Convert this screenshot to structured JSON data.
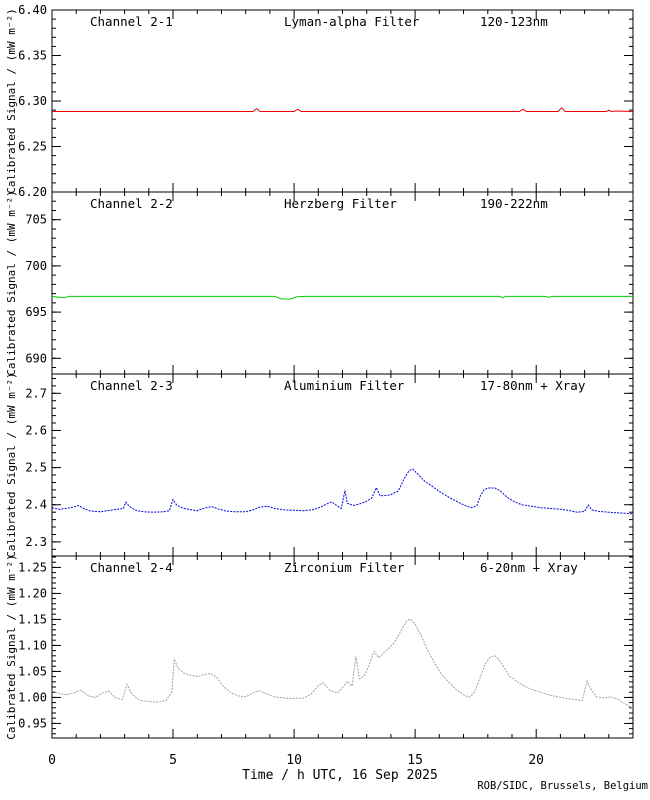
{
  "chart_data": {
    "type": "line",
    "title": "",
    "xlabel": "Time / h UTC, 16 Sep 2025",
    "credit": "ROB/SIDC, Brussels, Belgium",
    "x_range": [
      0,
      24
    ],
    "x_major_ticks": [
      0,
      5,
      10,
      15,
      20
    ],
    "x_tick_labels": [
      "0",
      "5",
      "10",
      "15",
      "20"
    ],
    "x_minor_step": 1,
    "grid": false,
    "legend": "none",
    "colors": {
      "frame": "#000000",
      "background": "#ffffff"
    },
    "panels": [
      {
        "id": "channel-2-1",
        "channel": "Channel 2-1",
        "filter": "Lyman-alpha Filter",
        "band": "120-123nm",
        "color": "#f00000",
        "ylabel": "Calibrated Signal / (mW m⁻²)",
        "y_range": [
          6.2,
          6.4
        ],
        "y_major_ticks": [
          6.2,
          6.25,
          6.3,
          6.35,
          6.4
        ],
        "y_tick_labels": [
          "6.20",
          "6.25",
          "6.30",
          "6.35",
          "6.40"
        ],
        "y_minor_step": 0.01,
        "line_style": "solid",
        "points": [
          [
            0,
            6.2885
          ],
          [
            2,
            6.2885
          ],
          [
            4,
            6.2885
          ],
          [
            6,
            6.2885
          ],
          [
            8.3,
            6.2885
          ],
          [
            8.45,
            6.2915
          ],
          [
            8.6,
            6.2885
          ],
          [
            10.0,
            6.2885
          ],
          [
            10.15,
            6.291
          ],
          [
            10.3,
            6.2885
          ],
          [
            12,
            6.2885
          ],
          [
            14,
            6.2885
          ],
          [
            16,
            6.2885
          ],
          [
            18,
            6.2885
          ],
          [
            19.3,
            6.2885
          ],
          [
            19.45,
            6.291
          ],
          [
            19.6,
            6.2885
          ],
          [
            20.9,
            6.2885
          ],
          [
            21.05,
            6.2925
          ],
          [
            21.2,
            6.2885
          ],
          [
            22.9,
            6.2885
          ],
          [
            23.0,
            6.29
          ],
          [
            23.1,
            6.2885
          ],
          [
            23.3,
            6.289
          ],
          [
            24,
            6.2885
          ]
        ]
      },
      {
        "id": "channel-2-2",
        "channel": "Channel 2-2",
        "filter": "Herzberg Filter",
        "band": "190-222nm",
        "color": "#00d000",
        "ylabel": "Calibrated Signal / (mW m⁻²)",
        "y_range": [
          688.3,
          708.0
        ],
        "y_major_ticks": [
          690,
          695,
          700,
          705
        ],
        "y_tick_labels": [
          "690",
          "695",
          "700",
          "705"
        ],
        "y_minor_step": 1,
        "line_style": "solid",
        "points": [
          [
            0,
            696.7
          ],
          [
            0.5,
            696.55
          ],
          [
            0.7,
            696.7
          ],
          [
            9.2,
            696.7
          ],
          [
            9.45,
            696.45
          ],
          [
            9.8,
            696.4
          ],
          [
            10.1,
            696.65
          ],
          [
            10.4,
            696.7
          ],
          [
            18.5,
            696.7
          ],
          [
            18.6,
            696.55
          ],
          [
            18.75,
            696.7
          ],
          [
            20.4,
            696.7
          ],
          [
            20.5,
            696.6
          ],
          [
            20.65,
            696.7
          ],
          [
            24,
            696.7
          ]
        ]
      },
      {
        "id": "channel-2-3",
        "channel": "Channel 2-3",
        "filter": "Aluminium Filter",
        "band": "17-80nm + Xray",
        "color": "#0000e0",
        "ylabel": "Calibrated Signal / (mW m⁻²)",
        "y_range": [
          2.262,
          2.752
        ],
        "y_major_ticks": [
          2.3,
          2.4,
          2.5,
          2.6,
          2.7
        ],
        "y_tick_labels": [
          "2.3",
          "2.4",
          "2.5",
          "2.6",
          "2.7"
        ],
        "y_minor_step": 0.02,
        "line_style": "dotted",
        "points": [
          [
            0,
            2.392
          ],
          [
            0.3,
            2.388
          ],
          [
            0.6,
            2.39
          ],
          [
            0.9,
            2.394
          ],
          [
            1.1,
            2.398
          ],
          [
            1.3,
            2.39
          ],
          [
            1.6,
            2.383
          ],
          [
            2.0,
            2.381
          ],
          [
            2.4,
            2.385
          ],
          [
            2.7,
            2.388
          ],
          [
            2.95,
            2.39
          ],
          [
            3.05,
            2.407
          ],
          [
            3.2,
            2.395
          ],
          [
            3.5,
            2.384
          ],
          [
            3.8,
            2.381
          ],
          [
            4.2,
            2.38
          ],
          [
            4.6,
            2.381
          ],
          [
            4.85,
            2.384
          ],
          [
            5.0,
            2.414
          ],
          [
            5.15,
            2.399
          ],
          [
            5.4,
            2.391
          ],
          [
            5.7,
            2.387
          ],
          [
            6.0,
            2.384
          ],
          [
            6.3,
            2.391
          ],
          [
            6.6,
            2.395
          ],
          [
            6.9,
            2.388
          ],
          [
            7.2,
            2.383
          ],
          [
            7.6,
            2.381
          ],
          [
            8.0,
            2.381
          ],
          [
            8.3,
            2.386
          ],
          [
            8.6,
            2.394
          ],
          [
            8.9,
            2.396
          ],
          [
            9.2,
            2.39
          ],
          [
            9.6,
            2.386
          ],
          [
            10.0,
            2.385
          ],
          [
            10.4,
            2.384
          ],
          [
            10.8,
            2.387
          ],
          [
            11.1,
            2.394
          ],
          [
            11.35,
            2.402
          ],
          [
            11.55,
            2.408
          ],
          [
            11.8,
            2.396
          ],
          [
            11.95,
            2.39
          ],
          [
            12.1,
            2.438
          ],
          [
            12.2,
            2.404
          ],
          [
            12.45,
            2.398
          ],
          [
            12.7,
            2.402
          ],
          [
            12.95,
            2.408
          ],
          [
            13.2,
            2.417
          ],
          [
            13.4,
            2.446
          ],
          [
            13.55,
            2.424
          ],
          [
            13.8,
            2.425
          ],
          [
            14.0,
            2.427
          ],
          [
            14.3,
            2.437
          ],
          [
            14.55,
            2.47
          ],
          [
            14.75,
            2.492
          ],
          [
            14.9,
            2.496
          ],
          [
            15.1,
            2.483
          ],
          [
            15.4,
            2.463
          ],
          [
            15.7,
            2.45
          ],
          [
            16.0,
            2.436
          ],
          [
            16.4,
            2.42
          ],
          [
            16.8,
            2.406
          ],
          [
            17.1,
            2.397
          ],
          [
            17.35,
            2.392
          ],
          [
            17.55,
            2.398
          ],
          [
            17.7,
            2.425
          ],
          [
            17.85,
            2.44
          ],
          [
            18.0,
            2.445
          ],
          [
            18.3,
            2.445
          ],
          [
            18.5,
            2.438
          ],
          [
            18.8,
            2.42
          ],
          [
            19.1,
            2.408
          ],
          [
            19.4,
            2.4
          ],
          [
            19.8,
            2.396
          ],
          [
            20.2,
            2.392
          ],
          [
            20.6,
            2.39
          ],
          [
            21.0,
            2.388
          ],
          [
            21.4,
            2.384
          ],
          [
            21.7,
            2.38
          ],
          [
            22.0,
            2.382
          ],
          [
            22.15,
            2.399
          ],
          [
            22.3,
            2.386
          ],
          [
            22.6,
            2.382
          ],
          [
            23.0,
            2.38
          ],
          [
            23.4,
            2.378
          ],
          [
            23.7,
            2.377
          ],
          [
            24,
            2.375
          ]
        ]
      },
      {
        "id": "channel-2-4",
        "channel": "Channel 2-4",
        "filter": "Zirconium Filter",
        "band": "6-20nm + Xray",
        "color": "#a0a0a0",
        "ylabel": "Calibrated Signal / (mW m⁻²)",
        "y_range": [
          0.922,
          1.272
        ],
        "y_major_ticks": [
          0.95,
          1.0,
          1.05,
          1.1,
          1.15,
          1.2,
          1.25
        ],
        "y_tick_labels": [
          "0.95",
          "1.00",
          "1.05",
          "1.10",
          "1.15",
          "1.20",
          "1.25"
        ],
        "y_minor_step": 0.01,
        "line_style": "dotted",
        "points": [
          [
            0,
            1.012
          ],
          [
            0.3,
            1.008
          ],
          [
            0.6,
            1.005
          ],
          [
            0.9,
            1.009
          ],
          [
            1.2,
            1.014
          ],
          [
            1.5,
            1.003
          ],
          [
            1.8,
            1.0
          ],
          [
            2.1,
            1.009
          ],
          [
            2.35,
            1.012
          ],
          [
            2.6,
            1.0
          ],
          [
            2.9,
            0.996
          ],
          [
            3.1,
            1.025
          ],
          [
            3.3,
            1.006
          ],
          [
            3.6,
            0.995
          ],
          [
            4.0,
            0.992
          ],
          [
            4.4,
            0.991
          ],
          [
            4.7,
            0.994
          ],
          [
            4.95,
            1.01
          ],
          [
            5.05,
            1.074
          ],
          [
            5.2,
            1.056
          ],
          [
            5.45,
            1.047
          ],
          [
            5.7,
            1.043
          ],
          [
            6.0,
            1.04
          ],
          [
            6.3,
            1.044
          ],
          [
            6.55,
            1.046
          ],
          [
            6.8,
            1.039
          ],
          [
            7.1,
            1.02
          ],
          [
            7.4,
            1.009
          ],
          [
            7.7,
            1.003
          ],
          [
            8.0,
            1.001
          ],
          [
            8.3,
            1.009
          ],
          [
            8.55,
            1.013
          ],
          [
            8.9,
            1.006
          ],
          [
            9.2,
            1.001
          ],
          [
            9.6,
            0.999
          ],
          [
            10.0,
            0.998
          ],
          [
            10.4,
            0.999
          ],
          [
            10.7,
            1.006
          ],
          [
            11.0,
            1.023
          ],
          [
            11.2,
            1.028
          ],
          [
            11.5,
            1.013
          ],
          [
            11.8,
            1.009
          ],
          [
            12.0,
            1.019
          ],
          [
            12.2,
            1.031
          ],
          [
            12.4,
            1.022
          ],
          [
            12.55,
            1.079
          ],
          [
            12.7,
            1.036
          ],
          [
            12.9,
            1.041
          ],
          [
            13.1,
            1.062
          ],
          [
            13.3,
            1.089
          ],
          [
            13.5,
            1.076
          ],
          [
            13.7,
            1.086
          ],
          [
            13.95,
            1.096
          ],
          [
            14.15,
            1.106
          ],
          [
            14.4,
            1.127
          ],
          [
            14.65,
            1.147
          ],
          [
            14.8,
            1.151
          ],
          [
            15.0,
            1.141
          ],
          [
            15.25,
            1.119
          ],
          [
            15.5,
            1.092
          ],
          [
            15.8,
            1.066
          ],
          [
            16.1,
            1.044
          ],
          [
            16.4,
            1.029
          ],
          [
            16.7,
            1.015
          ],
          [
            17.0,
            1.005
          ],
          [
            17.25,
            1.0
          ],
          [
            17.45,
            1.01
          ],
          [
            17.7,
            1.04
          ],
          [
            17.9,
            1.065
          ],
          [
            18.1,
            1.078
          ],
          [
            18.3,
            1.08
          ],
          [
            18.5,
            1.07
          ],
          [
            18.7,
            1.056
          ],
          [
            18.9,
            1.041
          ],
          [
            19.2,
            1.031
          ],
          [
            19.5,
            1.022
          ],
          [
            19.8,
            1.016
          ],
          [
            20.1,
            1.011
          ],
          [
            20.5,
            1.005
          ],
          [
            20.9,
            1.001
          ],
          [
            21.3,
            0.998
          ],
          [
            21.6,
            0.996
          ],
          [
            21.9,
            0.994
          ],
          [
            22.1,
            1.031
          ],
          [
            22.3,
            1.013
          ],
          [
            22.5,
            1.001
          ],
          [
            22.8,
            0.999
          ],
          [
            23.1,
            1.001
          ],
          [
            23.4,
            0.996
          ],
          [
            23.7,
            0.987
          ],
          [
            24,
            0.979
          ]
        ]
      }
    ]
  }
}
